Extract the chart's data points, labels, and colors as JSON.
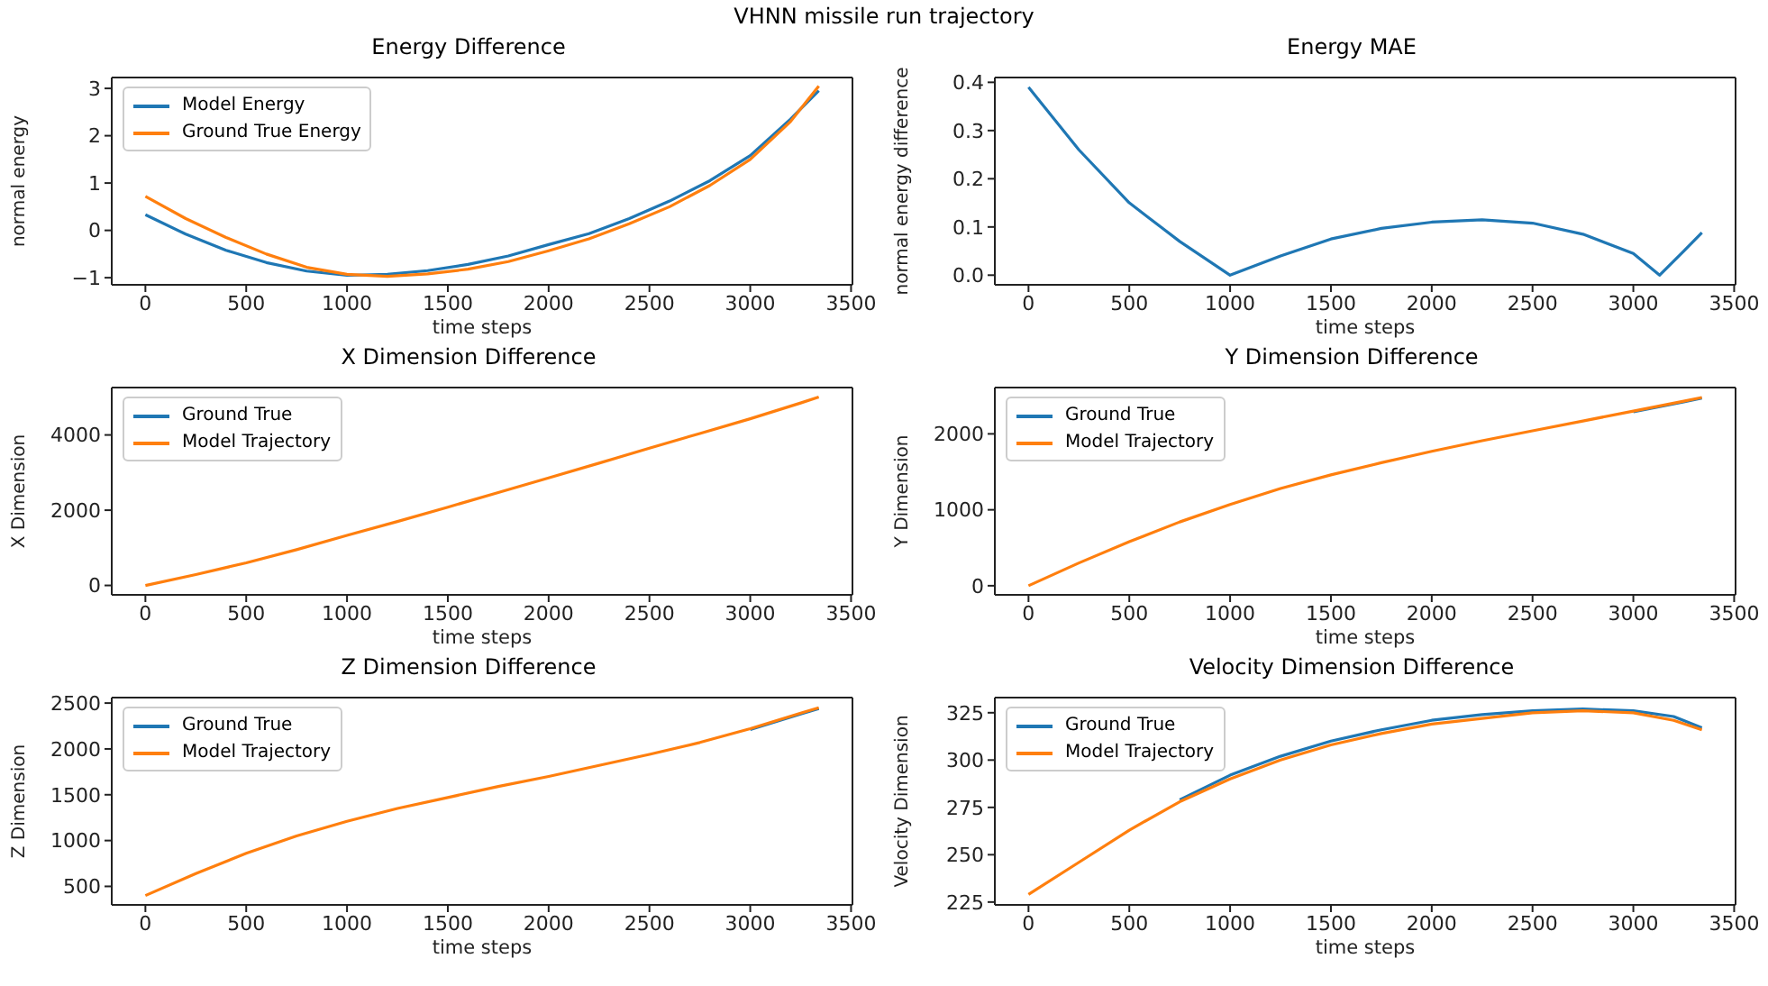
{
  "chart_data": [
    {
      "type": "line",
      "title": "Energy Difference",
      "xlabel": "time steps",
      "ylabel": "normal energy",
      "annotations": [
        "VHNN missile run trajectory"
      ],
      "legend": "top left",
      "xlim": [
        -167,
        3507
      ],
      "xticks": [
        0,
        500,
        1000,
        1500,
        2000,
        2500,
        3000,
        3500
      ],
      "ylim": [
        -1.15,
        3.23
      ],
      "yticks": [
        {
          "value": -1,
          "label": "−1"
        },
        0,
        1,
        2,
        3
      ],
      "x": [
        0,
        200,
        400,
        600,
        800,
        1000,
        1200,
        1400,
        1600,
        1800,
        2000,
        2200,
        2400,
        2600,
        2800,
        3000,
        3200,
        3340
      ],
      "series": [
        {
          "name": "Model Energy",
          "color": "#1f77b4",
          "values": [
            0.33,
            -0.08,
            -0.42,
            -0.68,
            -0.86,
            -0.95,
            -0.93,
            -0.85,
            -0.72,
            -0.54,
            -0.3,
            -0.07,
            0.25,
            0.62,
            1.05,
            1.58,
            2.35,
            2.95
          ]
        },
        {
          "name": "Ground True Energy",
          "color": "#ff7f0e",
          "values": [
            0.72,
            0.25,
            -0.15,
            -0.5,
            -0.78,
            -0.93,
            -0.97,
            -0.92,
            -0.82,
            -0.66,
            -0.43,
            -0.18,
            0.14,
            0.5,
            0.95,
            1.5,
            2.3,
            3.05
          ]
        }
      ]
    },
    {
      "type": "line",
      "title": "Energy MAE",
      "xlabel": "time steps",
      "ylabel": "normal energy difference",
      "xlim": [
        -167,
        3507
      ],
      "xticks": [
        0,
        500,
        1000,
        1500,
        2000,
        2500,
        3000,
        3500
      ],
      "ylim": [
        -0.02,
        0.41
      ],
      "yticks": [
        {
          "value": 0,
          "label": "0.0"
        },
        0.1,
        0.2,
        0.3,
        0.4
      ],
      "x": [
        0,
        250,
        500,
        750,
        1000,
        1250,
        1500,
        1750,
        2000,
        2250,
        2500,
        2750,
        3000,
        3130,
        3250,
        3340
      ],
      "series": [
        {
          "color": "#1f77b4",
          "values": [
            0.39,
            0.26,
            0.15,
            0.07,
            0.0,
            0.04,
            0.075,
            0.097,
            0.11,
            0.115,
            0.108,
            0.085,
            0.045,
            0.0,
            0.05,
            0.088
          ]
        }
      ]
    },
    {
      "type": "line",
      "title": "X Dimension Difference",
      "xlabel": "time steps",
      "ylabel": "X Dimension",
      "legend": "top left",
      "xlim": [
        -167,
        3507
      ],
      "xticks": [
        0,
        500,
        1000,
        1500,
        2000,
        2500,
        3000,
        3500
      ],
      "ylim": [
        -250,
        5260
      ],
      "yticks": [
        0,
        2000,
        4000
      ],
      "x": [
        0,
        250,
        500,
        750,
        1000,
        1250,
        1500,
        1750,
        2000,
        2250,
        2500,
        2750,
        3000,
        3250,
        3340
      ],
      "series": [
        {
          "name": "Ground True",
          "color": "#1f77b4",
          "values": [
            null,
            null,
            null,
            null,
            null,
            null,
            null,
            null,
            null,
            null,
            null,
            null,
            null,
            null,
            null
          ]
        },
        {
          "name": "Model Trajectory",
          "color": "#ff7f0e",
          "values": [
            0,
            290,
            600,
            950,
            1330,
            1700,
            2080,
            2470,
            2860,
            3250,
            3650,
            4040,
            4430,
            4850,
            5010
          ]
        }
      ]
    },
    {
      "type": "line",
      "title": "Y Dimension Difference",
      "xlabel": "time steps",
      "ylabel": "Y Dimension",
      "legend": "top left",
      "xlim": [
        -167,
        3507
      ],
      "xticks": [
        0,
        500,
        1000,
        1500,
        2000,
        2500,
        3000,
        3500
      ],
      "ylim": [
        -120,
        2610
      ],
      "yticks": [
        0,
        1000,
        2000
      ],
      "x": [
        0,
        250,
        500,
        750,
        1000,
        1250,
        1500,
        1750,
        2000,
        2250,
        2500,
        2750,
        3000,
        3250,
        3340
      ],
      "series": [
        {
          "name": "Ground True",
          "color": "#1f77b4",
          "values": [
            null,
            null,
            null,
            null,
            null,
            null,
            null,
            null,
            null,
            null,
            null,
            null,
            2290,
            2420,
            2470
          ]
        },
        {
          "name": "Model Trajectory",
          "color": "#ff7f0e",
          "values": [
            0,
            300,
            580,
            840,
            1070,
            1280,
            1460,
            1620,
            1770,
            1910,
            2040,
            2170,
            2300,
            2430,
            2480
          ]
        }
      ]
    },
    {
      "type": "line",
      "title": "Z Dimension Difference",
      "xlabel": "time steps",
      "ylabel": "Z Dimension",
      "legend": "top left",
      "xlim": [
        -167,
        3507
      ],
      "xticks": [
        0,
        500,
        1000,
        1500,
        2000,
        2500,
        3000,
        3500
      ],
      "ylim": [
        298,
        2560
      ],
      "yticks": [
        500,
        1000,
        1500,
        2000,
        2500
      ],
      "x": [
        0,
        250,
        500,
        750,
        1000,
        1250,
        1500,
        1750,
        2000,
        2250,
        2500,
        2750,
        3000,
        3250,
        3340
      ],
      "series": [
        {
          "name": "Ground True",
          "color": "#1f77b4",
          "values": [
            null,
            null,
            null,
            null,
            null,
            null,
            null,
            null,
            null,
            null,
            null,
            null,
            2210,
            2380,
            2440
          ]
        },
        {
          "name": "Model Trajectory",
          "color": "#ff7f0e",
          "values": [
            400,
            640,
            860,
            1050,
            1210,
            1350,
            1470,
            1590,
            1700,
            1820,
            1940,
            2070,
            2220,
            2390,
            2450
          ]
        }
      ]
    },
    {
      "type": "line",
      "title": "Velocity Dimension Difference",
      "xlabel": "time steps",
      "ylabel": "Velocity Dimension",
      "legend": "top left",
      "xlim": [
        -167,
        3507
      ],
      "xticks": [
        0,
        500,
        1000,
        1500,
        2000,
        2500,
        3000,
        3500
      ],
      "ylim": [
        223.5,
        333
      ],
      "yticks": [
        225,
        250,
        275,
        300,
        325
      ],
      "x": [
        0,
        250,
        500,
        750,
        1000,
        1250,
        1500,
        1750,
        2000,
        2250,
        2500,
        2750,
        3000,
        3200,
        3340
      ],
      "series": [
        {
          "name": "Ground True",
          "color": "#1f77b4",
          "values": [
            null,
            null,
            null,
            279,
            292,
            302,
            310,
            316,
            321,
            324,
            326,
            327,
            326,
            323,
            317
          ]
        },
        {
          "name": "Model Trajectory",
          "color": "#ff7f0e",
          "values": [
            229,
            246,
            263,
            278,
            290,
            300,
            308,
            314,
            319,
            322,
            325,
            326,
            325,
            321,
            316
          ]
        }
      ]
    }
  ]
}
